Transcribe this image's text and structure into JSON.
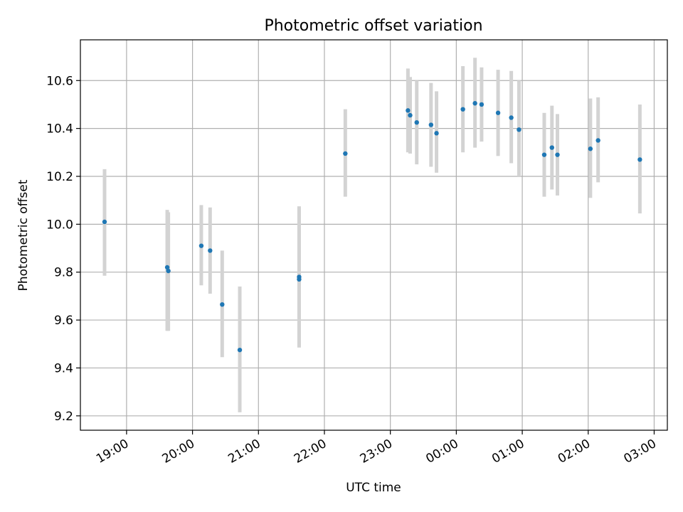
{
  "chart_data": {
    "type": "scatter",
    "title": "Photometric offset variation",
    "xlabel": "UTC time",
    "ylabel": "Photometric offset",
    "x_unit": "hours (UTC)",
    "xlim": [
      "18:18",
      "03:12"
    ],
    "ylim": [
      9.14,
      10.77
    ],
    "grid": true,
    "x_ticks": [
      "19:00",
      "20:00",
      "21:00",
      "22:00",
      "23:00",
      "00:00",
      "01:00",
      "02:00",
      "03:00"
    ],
    "y_ticks": [
      "9.2",
      "9.4",
      "9.6",
      "9.8",
      "10.0",
      "10.2",
      "10.4",
      "10.6"
    ],
    "colors": {
      "point": "#1f77b4",
      "errorbar": "#d3d3d3",
      "grid": "#b0b0b0",
      "axis": "#000000"
    },
    "points": [
      {
        "x": "18:40",
        "y": 10.01,
        "yerr_low": 9.785,
        "yerr_high": 10.23
      },
      {
        "x": "19:37",
        "y": 9.82,
        "yerr_low": 9.555,
        "yerr_high": 10.06
      },
      {
        "x": "19:38",
        "y": 9.805,
        "yerr_low": 9.555,
        "yerr_high": 10.05
      },
      {
        "x": "20:08",
        "y": 9.91,
        "yerr_low": 9.745,
        "yerr_high": 10.08
      },
      {
        "x": "20:16",
        "y": 9.89,
        "yerr_low": 9.71,
        "yerr_high": 10.07
      },
      {
        "x": "20:27",
        "y": 9.665,
        "yerr_low": 9.445,
        "yerr_high": 9.89
      },
      {
        "x": "20:43",
        "y": 9.475,
        "yerr_low": 9.215,
        "yerr_high": 9.74
      },
      {
        "x": "21:37",
        "y": 9.78,
        "yerr_low": 9.49,
        "yerr_high": 10.075
      },
      {
        "x": "21:37",
        "y": 9.77,
        "yerr_low": 9.485,
        "yerr_high": 10.07
      },
      {
        "x": "22:19",
        "y": 10.295,
        "yerr_low": 10.115,
        "yerr_high": 10.48
      },
      {
        "x": "23:16",
        "y": 10.475,
        "yerr_low": 10.3,
        "yerr_high": 10.65
      },
      {
        "x": "23:18",
        "y": 10.455,
        "yerr_low": 10.295,
        "yerr_high": 10.615
      },
      {
        "x": "23:24",
        "y": 10.425,
        "yerr_low": 10.25,
        "yerr_high": 10.6
      },
      {
        "x": "23:37",
        "y": 10.415,
        "yerr_low": 10.24,
        "yerr_high": 10.59
      },
      {
        "x": "23:42",
        "y": 10.38,
        "yerr_low": 10.215,
        "yerr_high": 10.555
      },
      {
        "x": "00:06",
        "y": 10.48,
        "yerr_low": 10.3,
        "yerr_high": 10.66
      },
      {
        "x": "00:17",
        "y": 10.505,
        "yerr_low": 10.32,
        "yerr_high": 10.695
      },
      {
        "x": "00:23",
        "y": 10.5,
        "yerr_low": 10.345,
        "yerr_high": 10.655
      },
      {
        "x": "00:38",
        "y": 10.465,
        "yerr_low": 10.285,
        "yerr_high": 10.645
      },
      {
        "x": "00:50",
        "y": 10.445,
        "yerr_low": 10.255,
        "yerr_high": 10.64
      },
      {
        "x": "00:57",
        "y": 10.395,
        "yerr_low": 10.2,
        "yerr_high": 10.6
      },
      {
        "x": "01:20",
        "y": 10.29,
        "yerr_low": 10.115,
        "yerr_high": 10.465
      },
      {
        "x": "01:27",
        "y": 10.32,
        "yerr_low": 10.145,
        "yerr_high": 10.495
      },
      {
        "x": "01:32",
        "y": 10.29,
        "yerr_low": 10.12,
        "yerr_high": 10.46
      },
      {
        "x": "02:02",
        "y": 10.315,
        "yerr_low": 10.11,
        "yerr_high": 10.525
      },
      {
        "x": "02:09",
        "y": 10.35,
        "yerr_low": 10.175,
        "yerr_high": 10.53
      },
      {
        "x": "02:47",
        "y": 10.27,
        "yerr_low": 10.045,
        "yerr_high": 10.5
      }
    ]
  }
}
